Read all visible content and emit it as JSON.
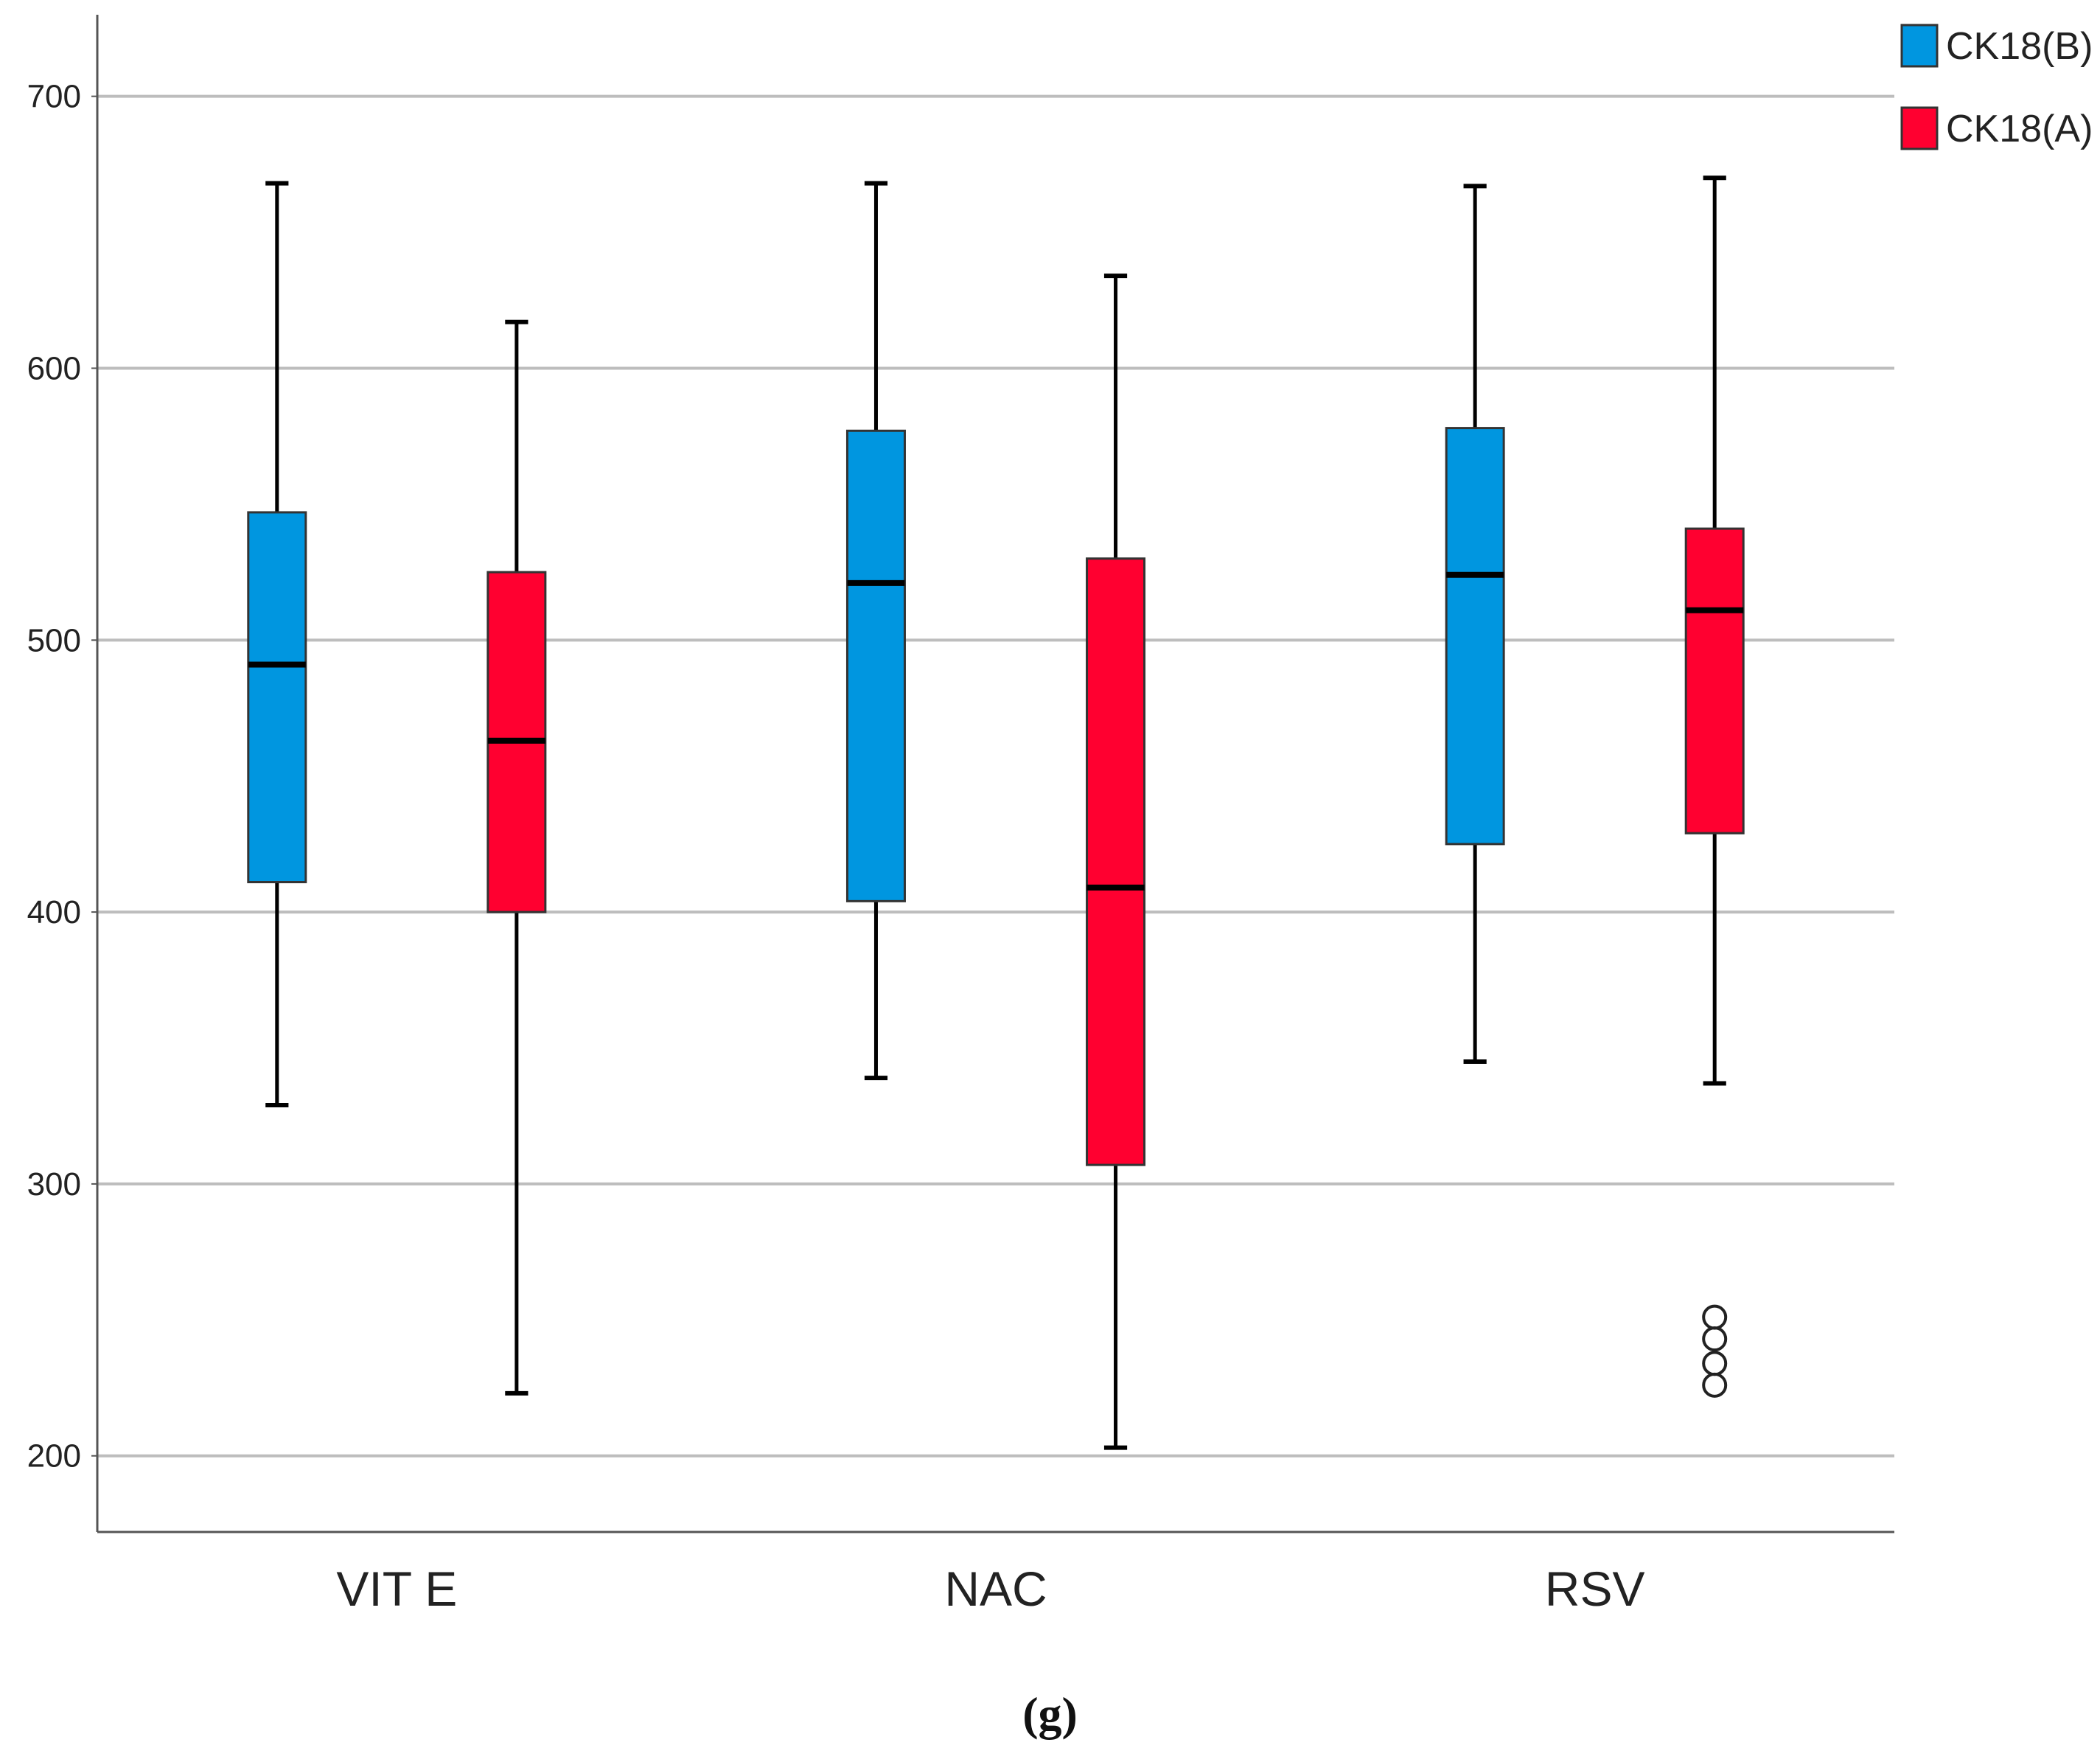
{
  "chart_data": {
    "type": "boxplot",
    "title": "",
    "xlabel": "",
    "ylabel": "",
    "ylim": [
      172,
      730
    ],
    "yticks": [
      200,
      300,
      400,
      500,
      600,
      700
    ],
    "grid": true,
    "legend_position": "top-right",
    "categories": [
      "VIT E",
      "NAC",
      "RSV"
    ],
    "series": [
      {
        "name": "CK18(B)",
        "color": "#0096e0",
        "boxes": [
          {
            "category": "VIT E",
            "whisker_low": 329,
            "q1": 411,
            "median": 491,
            "q3": 547,
            "whisker_high": 668,
            "outliers": []
          },
          {
            "category": "NAC",
            "whisker_low": 339,
            "q1": 404,
            "median": 521,
            "q3": 577,
            "whisker_high": 668,
            "outliers": []
          },
          {
            "category": "RSV",
            "whisker_low": 345,
            "q1": 425,
            "median": 524,
            "q3": 578,
            "whisker_high": 667,
            "outliers": []
          }
        ]
      },
      {
        "name": "CK18(A)",
        "color": "#ff0030",
        "boxes": [
          {
            "category": "VIT E",
            "whisker_low": 223,
            "q1": 400,
            "median": 463,
            "q3": 525,
            "whisker_high": 617,
            "outliers": []
          },
          {
            "category": "NAC",
            "whisker_low": 203,
            "q1": 307,
            "median": 409,
            "q3": 530,
            "whisker_high": 634,
            "outliers": []
          },
          {
            "category": "RSV",
            "whisker_low": 337,
            "q1": 429,
            "median": 511,
            "q3": 541,
            "whisker_high": 670,
            "outliers": [
              226,
              234,
              243,
              251
            ]
          }
        ]
      }
    ]
  },
  "caption": "(g)"
}
